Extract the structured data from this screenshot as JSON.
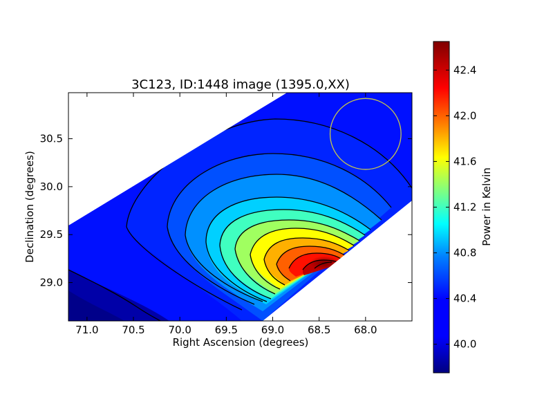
{
  "chart_data": {
    "type": "heatmap",
    "title": "3C123, ID:1448 image (1395.0,XX)",
    "xlabel": "Right Ascension (degrees)",
    "ylabel": "Declination (degrees)",
    "colorbar_label": "Power in Kelvin",
    "colormap": "jet",
    "x_axis_inverted": true,
    "xlim": [
      71.2,
      67.5
    ],
    "ylim": [
      28.6,
      30.98
    ],
    "xticks": [
      71.0,
      70.5,
      70.0,
      69.5,
      69.0,
      68.5,
      68.0
    ],
    "xtick_labels": [
      "71.0",
      "70.5",
      "70.0",
      "69.5",
      "69.0",
      "68.5",
      "68.0"
    ],
    "yticks": [
      29.0,
      29.5,
      30.0,
      30.5
    ],
    "ytick_labels": [
      "29.0",
      "29.5",
      "30.0",
      "30.5"
    ],
    "colorbar_range": [
      39.75,
      42.65
    ],
    "colorbar_ticks": [
      40.0,
      40.4,
      40.8,
      41.2,
      41.6,
      42.0,
      42.4
    ],
    "colorbar_tick_labels": [
      "40.0",
      "40.4",
      "40.8",
      "41.2",
      "41.6",
      "42.0",
      "42.4"
    ],
    "peak": {
      "ra": 68.5,
      "dec": 29.17,
      "value": 42.65
    },
    "beam_circle": {
      "ra": 68.0,
      "dec": 30.55,
      "radius_deg": 0.37,
      "color": "#c8c84a"
    },
    "contour_color": "#000000"
  }
}
